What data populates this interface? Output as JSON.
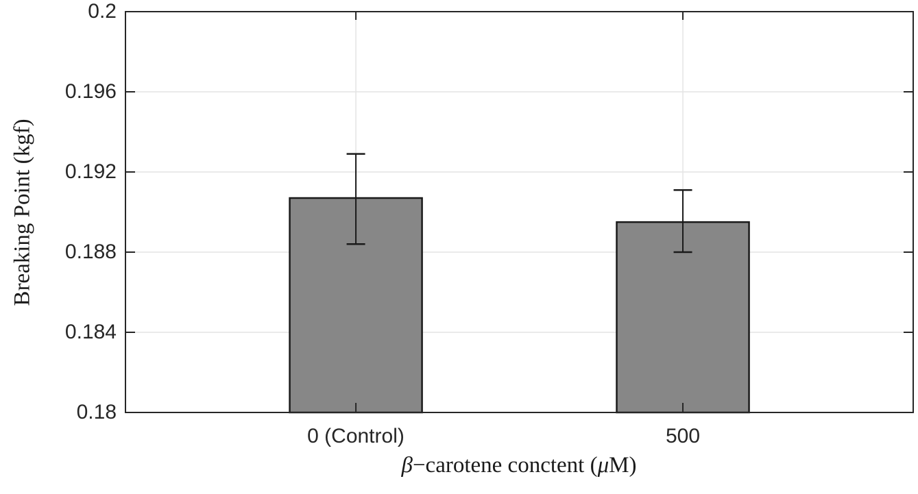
{
  "chart_data": {
    "type": "bar",
    "title": "",
    "xlabel": "β−carotene conctent (μM)",
    "xlabel_parts": {
      "beta": "β",
      "mid": "−carotene conctent (",
      "mu": "μ",
      "end": "M)"
    },
    "ylabel": "Breaking Point (kgf)",
    "categories": [
      "0 (Control)",
      "500"
    ],
    "values": [
      0.1907,
      0.1895
    ],
    "error_upper": [
      0.1929,
      0.1911
    ],
    "error_lower": [
      0.1884,
      0.188
    ],
    "ylim": [
      0.18,
      0.2
    ],
    "yticks": [
      0.18,
      0.184,
      0.188,
      0.192,
      0.196,
      0.2
    ],
    "ytick_labels": [
      "0.18",
      "0.184",
      "0.188",
      "0.192",
      "0.196",
      "0.2"
    ],
    "grid": "on",
    "legend": "none",
    "bar_color": "#878787",
    "bar_edge_color": "#1a1a1a",
    "error_bar_color": "#1a1a1a",
    "grid_color": "#e4e4e4",
    "axis_color": "#262626",
    "bar_centers_frac": [
      0.2925,
      0.7076
    ],
    "bar_width_frac": 0.168
  }
}
